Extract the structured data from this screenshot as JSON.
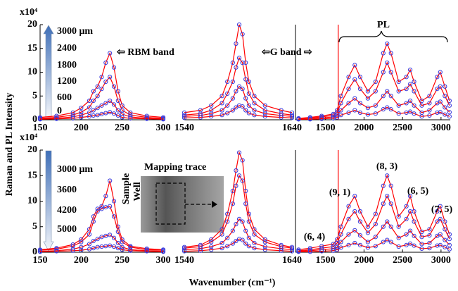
{
  "figure": {
    "y_label": "Raman and PL Intensity",
    "x_label": "Wavenumber (cm⁻¹)"
  },
  "chart_data": [
    {
      "type": "line",
      "multiplier": "x10⁴",
      "xlim": [
        150,
        300
      ],
      "xticks": [
        150,
        200,
        250,
        300
      ],
      "ylim": [
        0,
        20
      ],
      "yticks": [
        0,
        5,
        10,
        15,
        20
      ],
      "line_color": "#ff0000",
      "marker_color": "#3b3bdc",
      "colorbar_labels": [
        "3000 μm",
        "2400",
        "1800",
        "1200",
        "600",
        "0"
      ],
      "annotations": [
        "⇦ RBM band"
      ],
      "x": [
        150,
        170,
        190,
        200,
        210,
        215,
        220,
        225,
        230,
        235,
        240,
        245,
        250,
        260,
        280,
        300
      ],
      "series": [
        {
          "values": [
            0.5,
            0.8,
            1.5,
            2.5,
            4,
            6,
            7,
            9,
            12,
            14,
            11,
            6,
            3,
            1.5,
            0.8,
            0.5
          ]
        },
        {
          "values": [
            0.3,
            0.5,
            1,
            1.6,
            2.6,
            4,
            5,
            6.5,
            8,
            9,
            7,
            4,
            2,
            1,
            0.5,
            0.3
          ]
        },
        {
          "values": [
            0.2,
            0.3,
            0.6,
            1,
            1.5,
            2,
            2.5,
            3,
            3.5,
            4,
            3.2,
            2,
            1.2,
            0.6,
            0.3,
            0.2
          ]
        },
        {
          "values": [
            0.1,
            0.2,
            0.3,
            0.5,
            0.7,
            0.9,
            1,
            1.2,
            1.4,
            1.6,
            1.3,
            0.9,
            0.5,
            0.3,
            0.2,
            0.1
          ]
        }
      ]
    },
    {
      "type": "line",
      "xlim": [
        1540,
        1640
      ],
      "xticks": [
        1540,
        1640
      ],
      "ylim": [
        0,
        20
      ],
      "line_color": "#ff0000",
      "marker_color": "#3b3bdc",
      "annotations": [
        "⇦G band ⇨"
      ],
      "x": [
        1540,
        1555,
        1565,
        1575,
        1580,
        1585,
        1588,
        1591,
        1594,
        1597,
        1600,
        1605,
        1615,
        1630,
        1640
      ],
      "series": [
        {
          "values": [
            1.5,
            2,
            3,
            5,
            8,
            12,
            16,
            20,
            18,
            12,
            8,
            5,
            3,
            2,
            1.5
          ]
        },
        {
          "values": [
            1,
            1.3,
            2,
            3.5,
            5.5,
            8,
            11,
            13,
            12,
            8.5,
            5.5,
            3.5,
            2,
            1.3,
            1
          ]
        },
        {
          "values": [
            0.7,
            0.9,
            1.3,
            2,
            3,
            4.5,
            6,
            7,
            6.5,
            4.5,
            3,
            2,
            1.3,
            0.9,
            0.7
          ]
        },
        {
          "values": [
            0.4,
            0.5,
            0.7,
            1,
            1.4,
            2,
            2.6,
            3,
            2.8,
            2,
            1.4,
            1,
            0.7,
            0.5,
            0.4
          ]
        }
      ]
    },
    {
      "type": "line",
      "xlim": [
        1110,
        3120
      ],
      "xticks": [
        1500,
        2000,
        2500,
        3000
      ],
      "ylim": [
        0,
        20
      ],
      "line_color": "#ff0000",
      "marker_color": "#3b3bdc",
      "vline": 1665,
      "annotations": [
        "PL"
      ],
      "x": [
        1150,
        1300,
        1450,
        1600,
        1650,
        1700,
        1800,
        1880,
        1950,
        2050,
        2150,
        2250,
        2300,
        2350,
        2450,
        2550,
        2600,
        2650,
        2750,
        2850,
        2950,
        2990,
        3050,
        3110
      ],
      "series": [
        {
          "values": [
            0.3,
            0.5,
            0.8,
            1.2,
            2,
            5,
            9,
            11.5,
            9,
            6,
            8,
            14,
            16,
            14,
            8,
            9,
            10.5,
            8,
            4,
            5,
            9,
            10,
            7,
            4
          ]
        },
        {
          "values": [
            0.2,
            0.4,
            0.6,
            0.9,
            1.5,
            3.5,
            6.5,
            8.5,
            6.5,
            4.5,
            6,
            10,
            12,
            10,
            6,
            6.5,
            7.5,
            6,
            3,
            3.5,
            6.5,
            7,
            5,
            3
          ]
        },
        {
          "values": [
            0.1,
            0.2,
            0.4,
            0.6,
            1,
            2,
            3.5,
            4.5,
            3.5,
            2.5,
            3,
            5,
            6,
            5,
            3,
            3.5,
            4,
            3,
            1.5,
            2,
            3.5,
            3.8,
            2.6,
            1.6
          ]
        },
        {
          "values": [
            0.1,
            0.1,
            0.2,
            0.3,
            0.5,
            1,
            1.5,
            2,
            1.5,
            1.1,
            1.3,
            2.2,
            2.6,
            2.2,
            1.3,
            1.5,
            1.7,
            1.3,
            0.7,
            0.9,
            1.5,
            1.6,
            1.1,
            0.7
          ]
        }
      ]
    },
    {
      "type": "line",
      "multiplier": "x10⁴",
      "xlim": [
        150,
        300
      ],
      "xticks": [
        150,
        200,
        250,
        300
      ],
      "ylim": [
        0,
        20
      ],
      "yticks": [
        0,
        5,
        10,
        15,
        20
      ],
      "line_color": "#ff0000",
      "marker_color": "#3b3bdc",
      "colorbar_labels": [
        "3000 μm",
        "3600",
        "4200",
        "5000"
      ],
      "annotations": [
        "Mapping trace",
        "Sample",
        "Well"
      ],
      "x": [
        150,
        170,
        190,
        200,
        210,
        215,
        220,
        225,
        230,
        235,
        240,
        245,
        250,
        260,
        280,
        300
      ],
      "series": [
        {
          "values": [
            0.5,
            0.8,
            1.5,
            2.5,
            4.5,
            7,
            8.5,
            9,
            11,
            14,
            10,
            5,
            2.5,
            1.2,
            0.7,
            0.5
          ]
        },
        {
          "values": [
            0.4,
            0.6,
            1.2,
            2,
            3.5,
            6,
            8,
            8.5,
            8.8,
            9,
            7,
            4,
            2,
            1,
            0.5,
            0.4
          ]
        },
        {
          "values": [
            0.2,
            0.3,
            0.6,
            1,
            1.6,
            2.2,
            2.6,
            3,
            3.2,
            3.4,
            2.8,
            1.8,
            1,
            0.5,
            0.3,
            0.2
          ]
        },
        {
          "values": [
            0.1,
            0.2,
            0.3,
            0.4,
            0.6,
            0.8,
            1,
            1.1,
            1.2,
            1.3,
            1.1,
            0.8,
            0.5,
            0.3,
            0.2,
            0.1
          ]
        }
      ]
    },
    {
      "type": "line",
      "xlim": [
        1540,
        1640
      ],
      "xticks": [
        1540,
        1640
      ],
      "ylim": [
        0,
        20
      ],
      "line_color": "#ff0000",
      "marker_color": "#3b3bdc",
      "x": [
        1540,
        1555,
        1565,
        1575,
        1580,
        1585,
        1588,
        1591,
        1594,
        1597,
        1600,
        1605,
        1615,
        1630,
        1640
      ],
      "series": [
        {
          "values": [
            1,
            1.4,
            2.5,
            4.5,
            7.5,
            12,
            16,
            19.5,
            18,
            12,
            7.5,
            4.5,
            2.5,
            1.4,
            1
          ]
        },
        {
          "values": [
            0.8,
            1.1,
            2,
            3.5,
            6,
            9.5,
            13,
            15,
            14,
            9.5,
            6,
            3.5,
            2,
            1.1,
            0.8
          ]
        },
        {
          "values": [
            0.5,
            0.7,
            1.1,
            1.8,
            2.8,
            4.2,
            5.5,
            6.5,
            6,
            4.2,
            2.8,
            1.8,
            1.1,
            0.7,
            0.5
          ]
        },
        {
          "values": [
            0.2,
            0.3,
            0.5,
            0.8,
            1.2,
            1.7,
            2.2,
            2.6,
            2.4,
            1.7,
            1.2,
            0.8,
            0.5,
            0.3,
            0.2
          ]
        }
      ]
    },
    {
      "type": "line",
      "xlim": [
        1110,
        3120
      ],
      "xticks": [
        1500,
        2000,
        2500,
        3000
      ],
      "ylim": [
        0,
        20
      ],
      "line_color": "#ff0000",
      "marker_color": "#3b3bdc",
      "vline": 1665,
      "annotations": [
        "(6, 4)",
        "(9, 1)",
        "(8, 3)",
        "(6, 5)",
        "(7, 5)"
      ],
      "x": [
        1150,
        1300,
        1450,
        1600,
        1650,
        1700,
        1800,
        1880,
        1950,
        2050,
        2150,
        2250,
        2300,
        2350,
        2450,
        2550,
        2600,
        2650,
        2750,
        2850,
        2950,
        2990,
        3050,
        3110
      ],
      "series": [
        {
          "values": [
            0.5,
            0.8,
            1.2,
            1.6,
            2.5,
            5,
            9,
            11,
            8,
            5,
            7.5,
            13,
            15,
            13,
            7,
            9,
            11,
            8,
            4,
            4.5,
            8,
            9,
            6,
            3.5
          ]
        },
        {
          "values": [
            0.3,
            0.5,
            0.8,
            1.1,
            1.8,
            3.5,
            6.5,
            8,
            6,
            3.8,
            5.5,
            9.5,
            11,
            9.5,
            5,
            6.5,
            8,
            6,
            3,
            3.3,
            6,
            6.5,
            4.5,
            2.6
          ]
        },
        {
          "values": [
            0.2,
            0.3,
            0.5,
            0.7,
            1,
            2,
            3.5,
            4.3,
            3.3,
            2,
            3,
            5,
            6,
            5,
            2.8,
            3.5,
            4.2,
            3.2,
            1.6,
            1.8,
            3.2,
            3.5,
            2.4,
            1.4
          ]
        },
        {
          "values": [
            0.1,
            0.1,
            0.2,
            0.3,
            0.5,
            0.9,
            1.4,
            1.8,
            1.4,
            0.9,
            1.2,
            2,
            2.4,
            2,
            1.1,
            1.4,
            1.7,
            1.3,
            0.7,
            0.8,
            1.3,
            1.4,
            1,
            0.6
          ]
        }
      ]
    }
  ]
}
